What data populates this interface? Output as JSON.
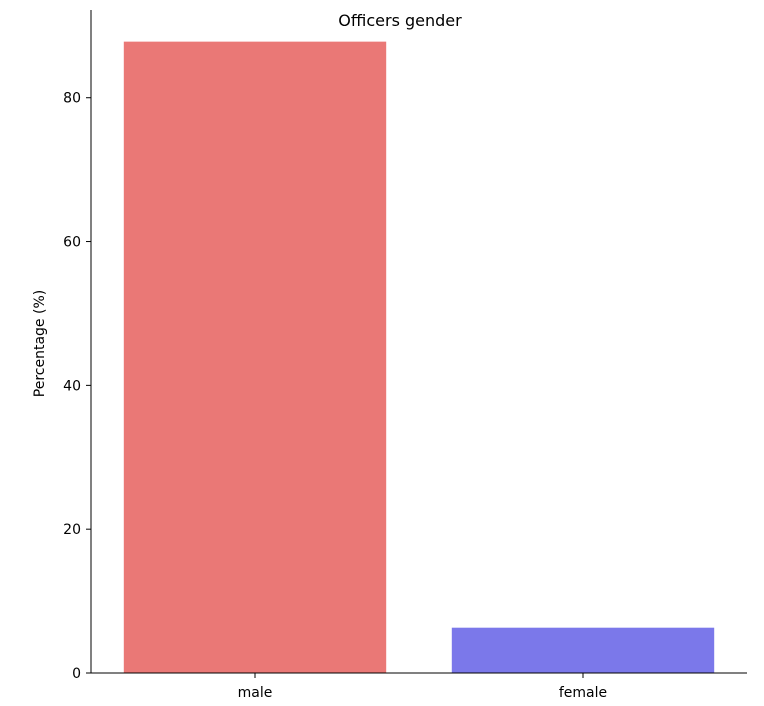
{
  "chart_data": {
    "type": "bar",
    "title": "Officers gender",
    "xlabel": "",
    "ylabel": "Percentage (%)",
    "categories": [
      "male",
      "female"
    ],
    "values": [
      87.8,
      6.3
    ],
    "colors": [
      "#ea7876",
      "#7b78ea"
    ],
    "ylim": [
      0,
      92.2
    ],
    "yticks": [
      0,
      20,
      40,
      60,
      80
    ],
    "grid": false,
    "legend": "none"
  }
}
